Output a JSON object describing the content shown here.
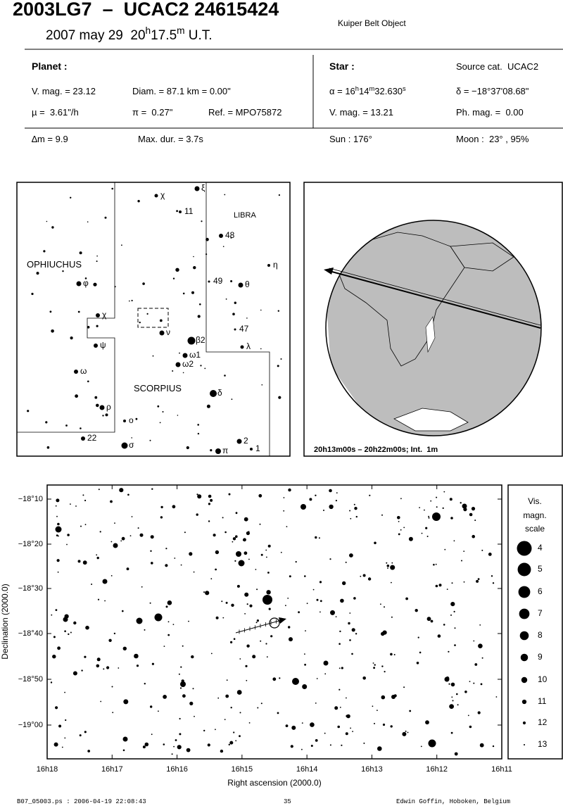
{
  "header": {
    "title": "2003LG7  –  UCAC2 24615424",
    "object_type": "Kuiper Belt Object",
    "epoch": [
      "2007 may 29  20",
      "h",
      "17.5",
      "m",
      " U.T."
    ]
  },
  "planet": {
    "heading": "Planet :",
    "vmag": "V. mag. = 23.12",
    "diam": "Diam. = 87.1 km = 0.00\"",
    "motion": "µ =  3.61\"/h",
    "parallax": "π =  0.27\"",
    "ref": "Ref. = MPO75872"
  },
  "star": {
    "heading": "Star :",
    "source": "Source cat.  UCAC2",
    "ra": [
      "α = 16",
      "h",
      "14",
      "m",
      "32.630",
      "s"
    ],
    "dec": "δ = −18°37'08.68\"",
    "vmag": "V. mag. = 13.21",
    "phmag": "Ph. mag. =  0.00"
  },
  "event": {
    "delta_mag": "∆m = 9.9",
    "max_duration": "Max. dur. = 3.7s",
    "sun": "Sun : 176°",
    "moon": "Moon :  23° , 95%"
  },
  "finder": {
    "constellations": [
      "OPHIUCHUS",
      "SCORPIUS",
      "LIBRA"
    ],
    "star_labels": [
      "ξ",
      "χ",
      "11",
      "48",
      "η",
      "49",
      "θ",
      "φ",
      "χ",
      "ν",
      "47",
      "ψ",
      "β2",
      "λ",
      "ω1",
      "ω2",
      "ω",
      "δ",
      "ρ",
      "ο",
      "2",
      "22",
      "σ",
      "1",
      "π"
    ]
  },
  "globe": {
    "caption": "20h13m00s – 20h22m00s; Int.  1m"
  },
  "sky_map": {
    "dec_ticks": [
      "−18°10",
      "−18°20",
      "−18°30",
      "−18°40",
      "−18°50",
      "−19°00"
    ],
    "ra_ticks": [
      "16h18",
      "16h17",
      "16h16",
      "16h15",
      "16h14",
      "16h13",
      "16h12",
      "16h11"
    ],
    "x_label": "Right ascension (2000.0)",
    "y_label": "Declination (2000.0)"
  },
  "magnitude_scale": {
    "title": [
      "Vis.",
      "magn.",
      "scale"
    ],
    "magnitudes": [
      4,
      5,
      6,
      7,
      8,
      9,
      10,
      11,
      12,
      13
    ]
  },
  "footer": {
    "file": "B07_05003.ps : 2006-04-19 22:08:43",
    "page": "35",
    "author": "Edwin Goffin, Hoboken, Belgium"
  }
}
